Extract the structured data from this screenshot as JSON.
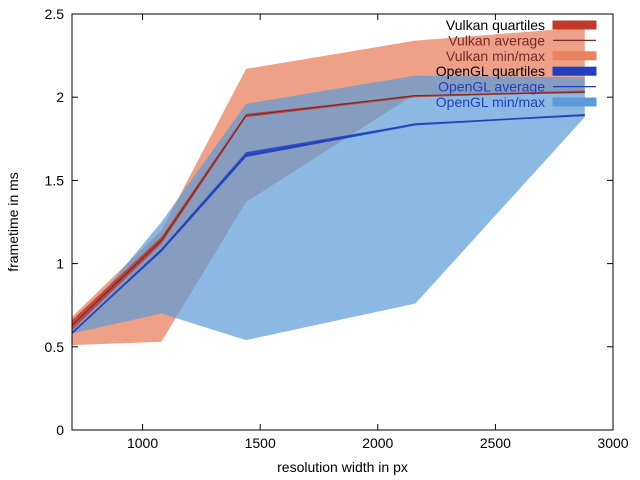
{
  "chart_data": {
    "type": "area",
    "xlabel": "resolution width in px",
    "ylabel": "frametime in ms",
    "xlim": [
      700,
      3000
    ],
    "ylim": [
      0,
      2.5
    ],
    "xticks": [
      1000,
      1500,
      2000,
      2500,
      3000
    ],
    "yticks": [
      0,
      0.5,
      1,
      1.5,
      2,
      2.5
    ],
    "ytick_labels": [
      "0",
      "0.5",
      "1",
      "1.5",
      "2",
      "2.5"
    ],
    "grid": false,
    "legend_position": "top-right",
    "x": [
      700,
      1080,
      1440,
      2160,
      2880
    ],
    "series": [
      {
        "name": "Vulkan quartiles",
        "kind": "band",
        "color": "#c0392b",
        "lower": [
          0.6,
          1.12,
          1.88,
          2.0,
          2.03
        ],
        "upper": [
          0.66,
          1.16,
          1.9,
          2.01,
          2.04
        ]
      },
      {
        "name": "Vulkan average",
        "kind": "line",
        "color": "#7b2a2a",
        "values": [
          0.63,
          1.14,
          1.89,
          2.01,
          2.03
        ]
      },
      {
        "name": "Vulkan min/max",
        "kind": "band",
        "color": "#e8825f",
        "lower": [
          0.51,
          0.53,
          1.37,
          2.02,
          2.02
        ],
        "upper": [
          0.68,
          1.2,
          2.17,
          2.34,
          2.42
        ]
      },
      {
        "name": "OpenGL quartiles",
        "kind": "band",
        "color": "#1f3fbf",
        "lower": [
          0.58,
          1.07,
          1.64,
          1.83,
          1.89
        ],
        "upper": [
          0.59,
          1.09,
          1.67,
          1.84,
          1.9
        ]
      },
      {
        "name": "OpenGL average",
        "kind": "line",
        "color": "#1f3fbf",
        "values": [
          0.58,
          1.08,
          1.65,
          1.84,
          1.89
        ]
      },
      {
        "name": "OpenGL min/max",
        "kind": "band",
        "color": "#5b9bd9",
        "lower": [
          0.58,
          0.7,
          0.54,
          0.76,
          1.88
        ],
        "upper": [
          0.6,
          1.25,
          1.96,
          2.13,
          2.12
        ]
      }
    ]
  }
}
